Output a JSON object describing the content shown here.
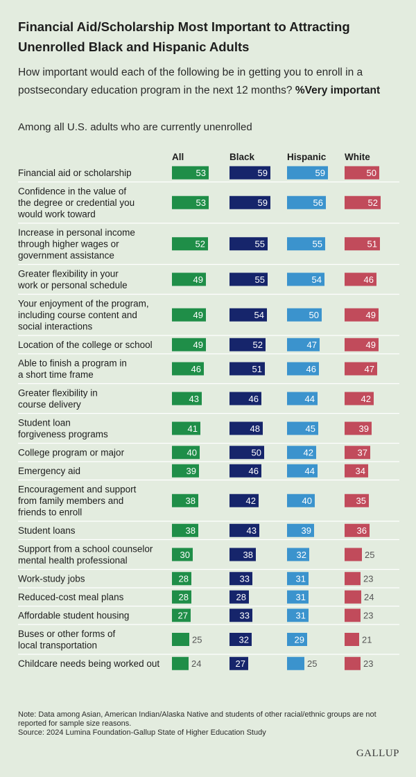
{
  "header": {
    "title": "Financial Aid/Scholarship Most Important to Attracting Unenrolled Black and Hispanic Adults",
    "subtitle": "How important would each of the following be in getting you to enroll in a postsecondary education program in the next 12 months?",
    "subtitle_emphasis": "%Very important",
    "subgroup": "Among all U.S. adults who are currently unenrolled"
  },
  "footer": {
    "note": "Note: Data among Asian, American Indian/Alaska Native and students of other racial/ethnic groups are not reported for sample size reasons.",
    "source": "Source: 2024 Lumina Foundation-Gallup State of Higher Education Study",
    "logo": "GALLUP"
  },
  "colors": {
    "All": "#1f8e48",
    "Black": "#16256b",
    "Hispanic": "#3b93cd",
    "White": "#c14b5b",
    "background": "#e3ecdf",
    "divider": "#ffffff"
  },
  "chart_data": {
    "type": "bar",
    "orientation": "horizontal",
    "categories": [
      "Financial aid or scholarship",
      "Confidence in the value of the degree or credential you would work toward",
      "Increase in personal income through higher wages or government assistance",
      "Greater flexibility in your work or personal schedule",
      "Your enjoyment of the program, including course content and social interactions",
      "Location of the college or school",
      "Able to finish a program in a short time frame",
      "Greater flexibility in course delivery",
      "Student loan forgiveness programs",
      "College program or major",
      "Emergency aid",
      "Encouragement and support from family members and friends to enroll",
      "Student loans",
      "Support from a school counselor mental health professional",
      "Work-study jobs",
      "Reduced-cost meal plans",
      "Affordable student housing",
      "Buses or other forms of local transportation",
      "Childcare needs being worked out"
    ],
    "series": [
      {
        "name": "All",
        "values": [
          53,
          53,
          52,
          49,
          49,
          49,
          46,
          43,
          41,
          40,
          39,
          38,
          38,
          30,
          28,
          28,
          27,
          25,
          24
        ]
      },
      {
        "name": "Black",
        "values": [
          59,
          59,
          55,
          55,
          54,
          52,
          51,
          46,
          48,
          50,
          46,
          42,
          43,
          38,
          33,
          28,
          33,
          32,
          27
        ]
      },
      {
        "name": "Hispanic",
        "values": [
          59,
          56,
          55,
          54,
          50,
          47,
          46,
          44,
          45,
          42,
          44,
          40,
          39,
          32,
          31,
          31,
          31,
          29,
          25
        ]
      },
      {
        "name": "White",
        "values": [
          50,
          52,
          51,
          46,
          49,
          49,
          47,
          42,
          39,
          37,
          34,
          35,
          36,
          25,
          23,
          24,
          23,
          21,
          23
        ]
      }
    ],
    "data_labels": true,
    "grid": false,
    "legend": "column-headers-top"
  }
}
